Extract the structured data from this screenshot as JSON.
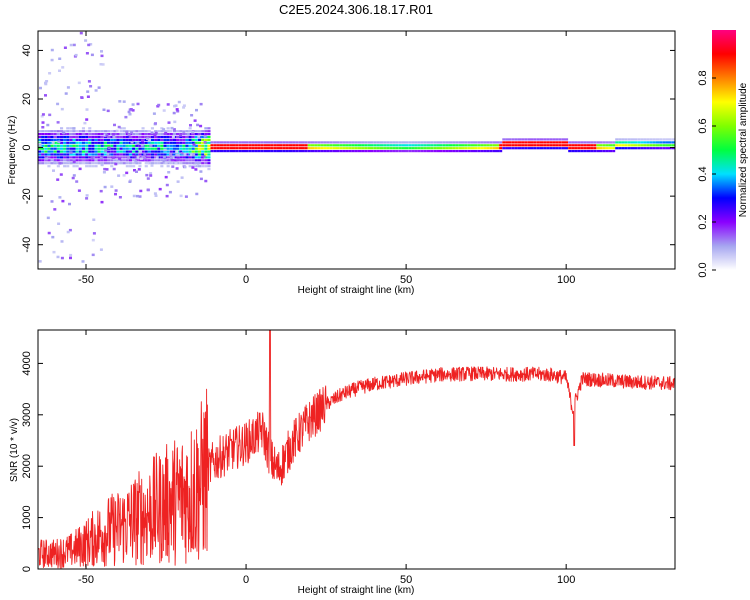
{
  "title": "C2E5.2024.306.18.17.R01",
  "chart_data": [
    {
      "type": "heatmap",
      "xlabel": "Height of straight line (km)",
      "ylabel": "Frequency (Hz)",
      "xlim": [
        -65,
        134
      ],
      "ylim": [
        -50,
        48
      ],
      "xticks": [
        -50,
        0,
        50,
        100
      ],
      "yticks": [
        -40,
        -20,
        0,
        20,
        40
      ],
      "colorbar": {
        "label": "Normalized spectral amplitude",
        "range": [
          0,
          1
        ],
        "ticks": [
          "0.0",
          "0.2",
          "0.4",
          "0.6",
          "0.8"
        ],
        "colormap": [
          "#ffffff",
          "#a6a6f0",
          "#8a00ff",
          "#0000ff",
          "#00e0ff",
          "#00ff40",
          "#80ff00",
          "#ffff00",
          "#ff8000",
          "#ff0000",
          "#ff0080"
        ]
      },
      "description_points": [
        {
          "x": -60,
          "f": 0,
          "amp": 0.45
        },
        {
          "x": -40,
          "f": 0,
          "amp": 0.4
        },
        {
          "x": -20,
          "f": 0,
          "amp": 0.4
        },
        {
          "x": -10,
          "f": 0,
          "amp": 0.85
        },
        {
          "x": 5,
          "f": 0,
          "amp": 0.85
        },
        {
          "x": 12,
          "f": 0,
          "amp": 0.85
        },
        {
          "x": 50,
          "f": 0,
          "amp": 0.55
        },
        {
          "x": 90,
          "f": 1,
          "amp": 0.9
        },
        {
          "x": 105,
          "f": 0,
          "amp": 0.85
        },
        {
          "x": 130,
          "f": 1,
          "amp": 0.55
        }
      ]
    },
    {
      "type": "line",
      "xlabel": "Height of straight line (km)",
      "ylabel": "SNR (10 * v/v)",
      "xlim": [
        -65,
        134
      ],
      "ylim": [
        0,
        4650
      ],
      "xticks": [
        -50,
        0,
        50,
        100
      ],
      "yticks": [
        0,
        1000,
        2000,
        3000,
        4000
      ],
      "series": [
        {
          "color": "#ee2222",
          "x": [
            -65,
            -60,
            -55,
            -50,
            -45,
            -40,
            -35,
            -30,
            -25,
            -20,
            -15,
            -10,
            -5,
            0,
            5,
            8,
            10,
            15,
            20,
            25,
            30,
            35,
            40,
            50,
            60,
            70,
            80,
            90,
            95,
            100,
            102,
            105,
            110,
            120,
            130,
            134
          ],
          "y": [
            300,
            300,
            350,
            500,
            700,
            800,
            950,
            1100,
            1250,
            1400,
            1600,
            2100,
            2300,
            2450,
            2700,
            2100,
            1900,
            2500,
            2900,
            3200,
            3400,
            3520,
            3600,
            3700,
            3780,
            3800,
            3790,
            3790,
            3780,
            3720,
            3100,
            3700,
            3680,
            3640,
            3620,
            3600
          ]
        }
      ]
    }
  ]
}
